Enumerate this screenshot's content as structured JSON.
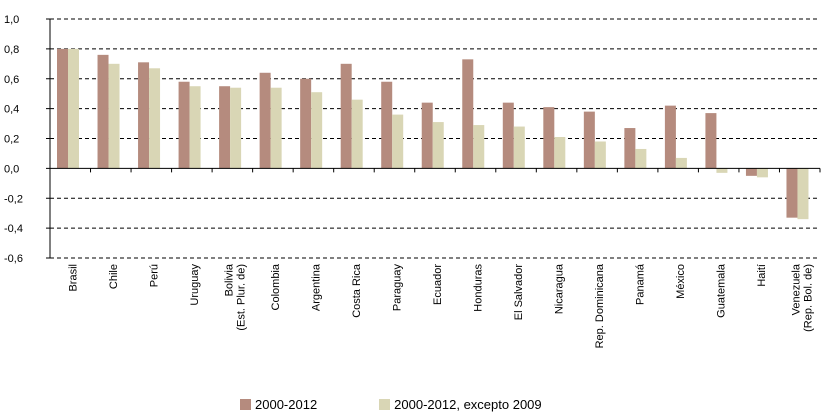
{
  "chart_data": {
    "type": "bar",
    "categories": [
      [
        "Brasil"
      ],
      [
        "Chile"
      ],
      [
        "Perú"
      ],
      [
        "Uruguay"
      ],
      [
        "Bolivia",
        "(Est. Plur. de)"
      ],
      [
        "Colombia"
      ],
      [
        "Argentina"
      ],
      [
        "Costa Rica"
      ],
      [
        "Paraguay"
      ],
      [
        "Ecuador"
      ],
      [
        "Honduras"
      ],
      [
        "El Salvador"
      ],
      [
        "Nicaragua"
      ],
      [
        "Rep. Dominicana"
      ],
      [
        "Panamá"
      ],
      [
        "México"
      ],
      [
        "Guatemala"
      ],
      [
        "Haití"
      ],
      [
        "Venezuela",
        "(Rep. Bol. de)"
      ]
    ],
    "series": [
      {
        "name": "2000-2012",
        "color": "#b58b7e",
        "values": [
          0.8,
          0.76,
          0.71,
          0.58,
          0.55,
          0.64,
          0.6,
          0.7,
          0.58,
          0.44,
          0.73,
          0.44,
          0.41,
          0.38,
          0.27,
          0.42,
          0.37,
          -0.05,
          -0.33
        ]
      },
      {
        "name": "2000-2012, excepto 2009",
        "color": "#d9d6b5",
        "values": [
          0.8,
          0.7,
          0.67,
          0.55,
          0.54,
          0.54,
          0.51,
          0.46,
          0.36,
          0.31,
          0.29,
          0.28,
          0.21,
          0.18,
          0.13,
          0.07,
          -0.03,
          -0.06,
          -0.34
        ]
      }
    ],
    "yticks": [
      "1,0",
      "0,8",
      "0,6",
      "0,4",
      "0,2",
      "0,0",
      "-0,2",
      "-0,4",
      "-0,6"
    ],
    "ytick_values": [
      1.0,
      0.8,
      0.6,
      0.4,
      0.2,
      0.0,
      -0.2,
      -0.4,
      -0.6
    ],
    "ylim": [
      -0.6,
      1.0
    ],
    "grid": "dashed horizontal",
    "legend_position": "bottom"
  }
}
